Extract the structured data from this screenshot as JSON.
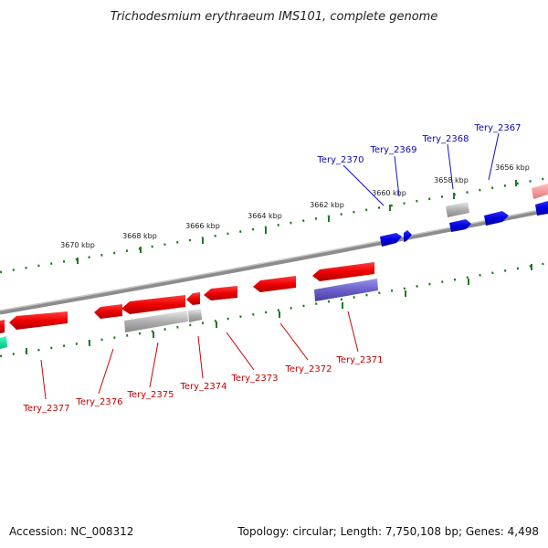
{
  "title": "Trichodesmium erythraeum IMS101, complete genome",
  "footer": {
    "accession": "Accession: NC_008312",
    "info": "Topology: circular; Length: 7,750,108 bp; Genes: 4,498"
  },
  "ticks": [
    "3670 kbp",
    "3668 kbp",
    "3666 kbp",
    "3664 kbp",
    "3662 kbp",
    "3660 kbp",
    "3658 kbp",
    "3656 kbp"
  ],
  "top_genes": [
    "Tery_2370",
    "Tery_2369",
    "Tery_2368",
    "Tery_2367"
  ],
  "bottom_genes": [
    "Tery_2377",
    "Tery_2376",
    "Tery_2375",
    "Tery_2374",
    "Tery_2373",
    "Tery_2372",
    "Tery_2371"
  ],
  "colors": {
    "forward_gene": "#0000dd",
    "reverse_gene": "#ee0000",
    "pseudo_gene": "#a8a8a8",
    "highlight_gene": "#6a60c8",
    "tick_green": "#1f7a1f",
    "backbone": "#8c8c8c"
  }
}
